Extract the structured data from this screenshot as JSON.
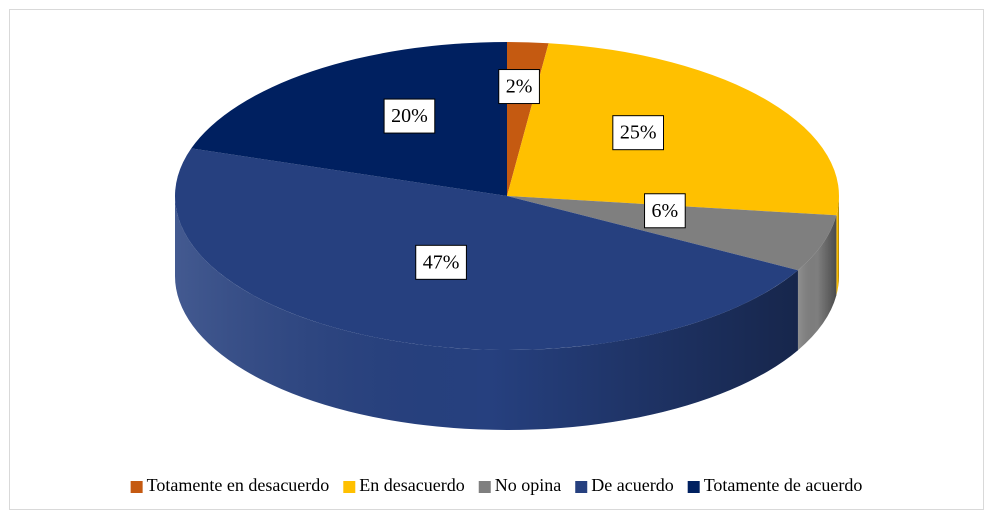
{
  "chart_data": {
    "type": "pie",
    "categories": [
      "Totamente en desacuerdo",
      "En desacuerdo",
      "No opina",
      "De acuerdo",
      "Totamente de acuerdo"
    ],
    "values": [
      2,
      25,
      6,
      47,
      20
    ],
    "value_labels": [
      "2%",
      "25%",
      "6%",
      "47%",
      "20%"
    ],
    "colors": [
      "#c55a11",
      "#ffc000",
      "#7f7f7f",
      "#26407f",
      "#002060"
    ],
    "legend": "bottom"
  }
}
